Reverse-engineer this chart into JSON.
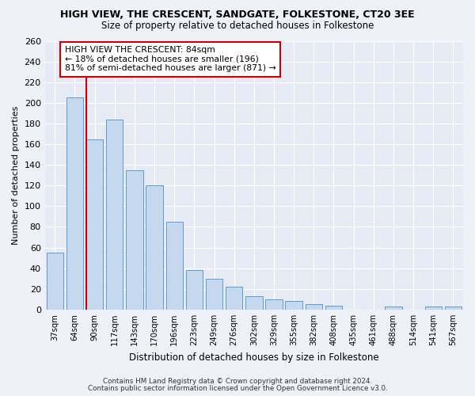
{
  "title": "HIGH VIEW, THE CRESCENT, SANDGATE, FOLKESTONE, CT20 3EE",
  "subtitle": "Size of property relative to detached houses in Folkestone",
  "xlabel": "Distribution of detached houses by size in Folkestone",
  "ylabel": "Number of detached properties",
  "categories": [
    "37sqm",
    "64sqm",
    "90sqm",
    "117sqm",
    "143sqm",
    "170sqm",
    "196sqm",
    "223sqm",
    "249sqm",
    "276sqm",
    "302sqm",
    "329sqm",
    "355sqm",
    "382sqm",
    "408sqm",
    "435sqm",
    "461sqm",
    "488sqm",
    "514sqm",
    "541sqm",
    "567sqm"
  ],
  "values": [
    55,
    205,
    165,
    184,
    135,
    120,
    85,
    38,
    30,
    22,
    13,
    10,
    8,
    5,
    4,
    0,
    0,
    3,
    0,
    3,
    3
  ],
  "bar_color": "#c5d8ed",
  "bar_edge_color": "#5b9bd5",
  "highlight_index": 2,
  "highlight_color": "#cc0000",
  "annotation_line1": "HIGH VIEW THE CRESCENT: 84sqm",
  "annotation_line2": "← 18% of detached houses are smaller (196)",
  "annotation_line3": "81% of semi-detached houses are larger (871) →",
  "annotation_box_color": "#ffffff",
  "annotation_box_edge": "#cc0000",
  "footer1": "Contains HM Land Registry data © Crown copyright and database right 2024.",
  "footer2": "Contains public sector information licensed under the Open Government Licence v3.0.",
  "ylim": [
    0,
    260
  ],
  "yticks": [
    0,
    20,
    40,
    60,
    80,
    100,
    120,
    140,
    160,
    180,
    200,
    220,
    240,
    260
  ],
  "bg_color": "#eef2f8",
  "plot_bg_color": "#e5eaf5"
}
